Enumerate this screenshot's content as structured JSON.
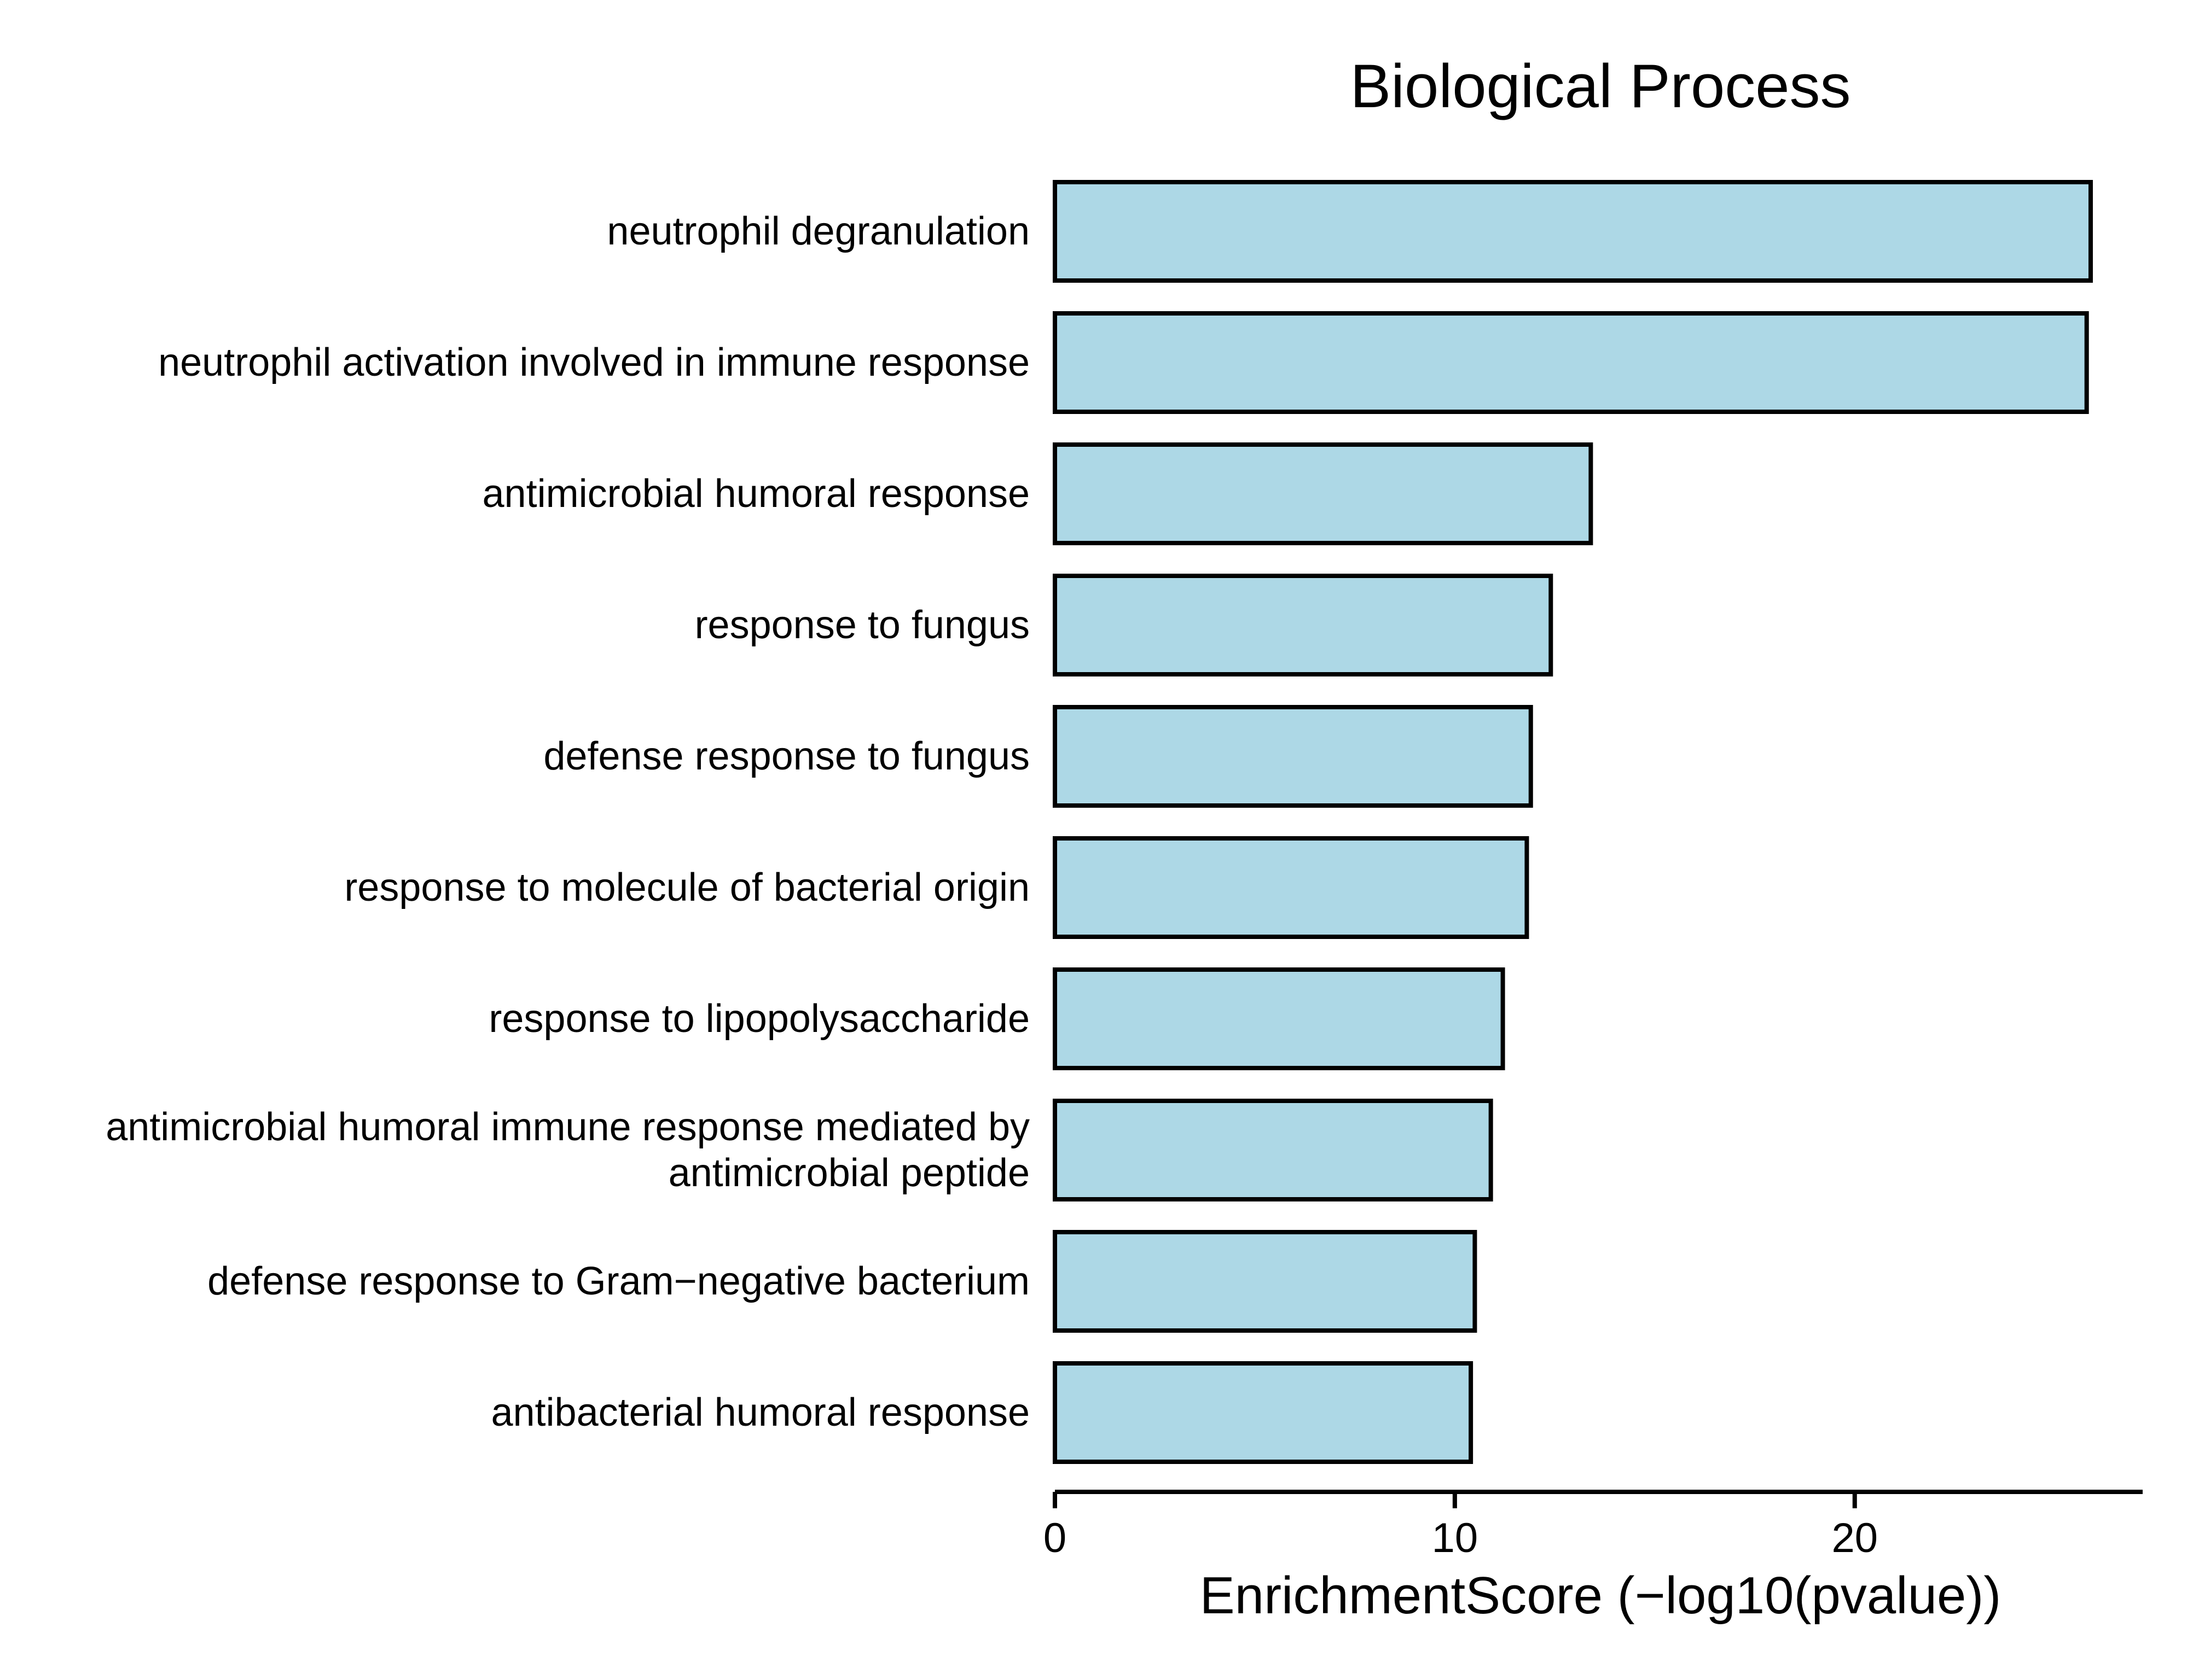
{
  "chart_data": {
    "type": "bar",
    "orientation": "horizontal",
    "title": "Biological Process",
    "xlabel": "EnrichmentScore (−log10(pvalue))",
    "ylabel": "",
    "xlim": [
      0,
      27.2
    ],
    "xticks": [
      0,
      10,
      20
    ],
    "xtick_labels": [
      "0",
      "10",
      "20"
    ],
    "grid": false,
    "legend": "none",
    "categories": [
      [
        "neutrophil degranulation"
      ],
      [
        "neutrophil activation involved in immune response"
      ],
      [
        "antimicrobial humoral response"
      ],
      [
        "response to fungus"
      ],
      [
        "defense response to fungus"
      ],
      [
        "response to molecule of bacterial origin"
      ],
      [
        "response to lipopolysaccharide"
      ],
      [
        "antimicrobial humoral immune response mediated by",
        "antimicrobial peptide"
      ],
      [
        "defense response to Gram−negative bacterium"
      ],
      [
        "antibacterial humoral response"
      ]
    ],
    "values": [
      25.9,
      25.8,
      13.4,
      12.4,
      11.9,
      11.8,
      11.2,
      10.9,
      10.5,
      10.4
    ],
    "bar_fill": "#add8e6",
    "bar_stroke": "#000000"
  }
}
